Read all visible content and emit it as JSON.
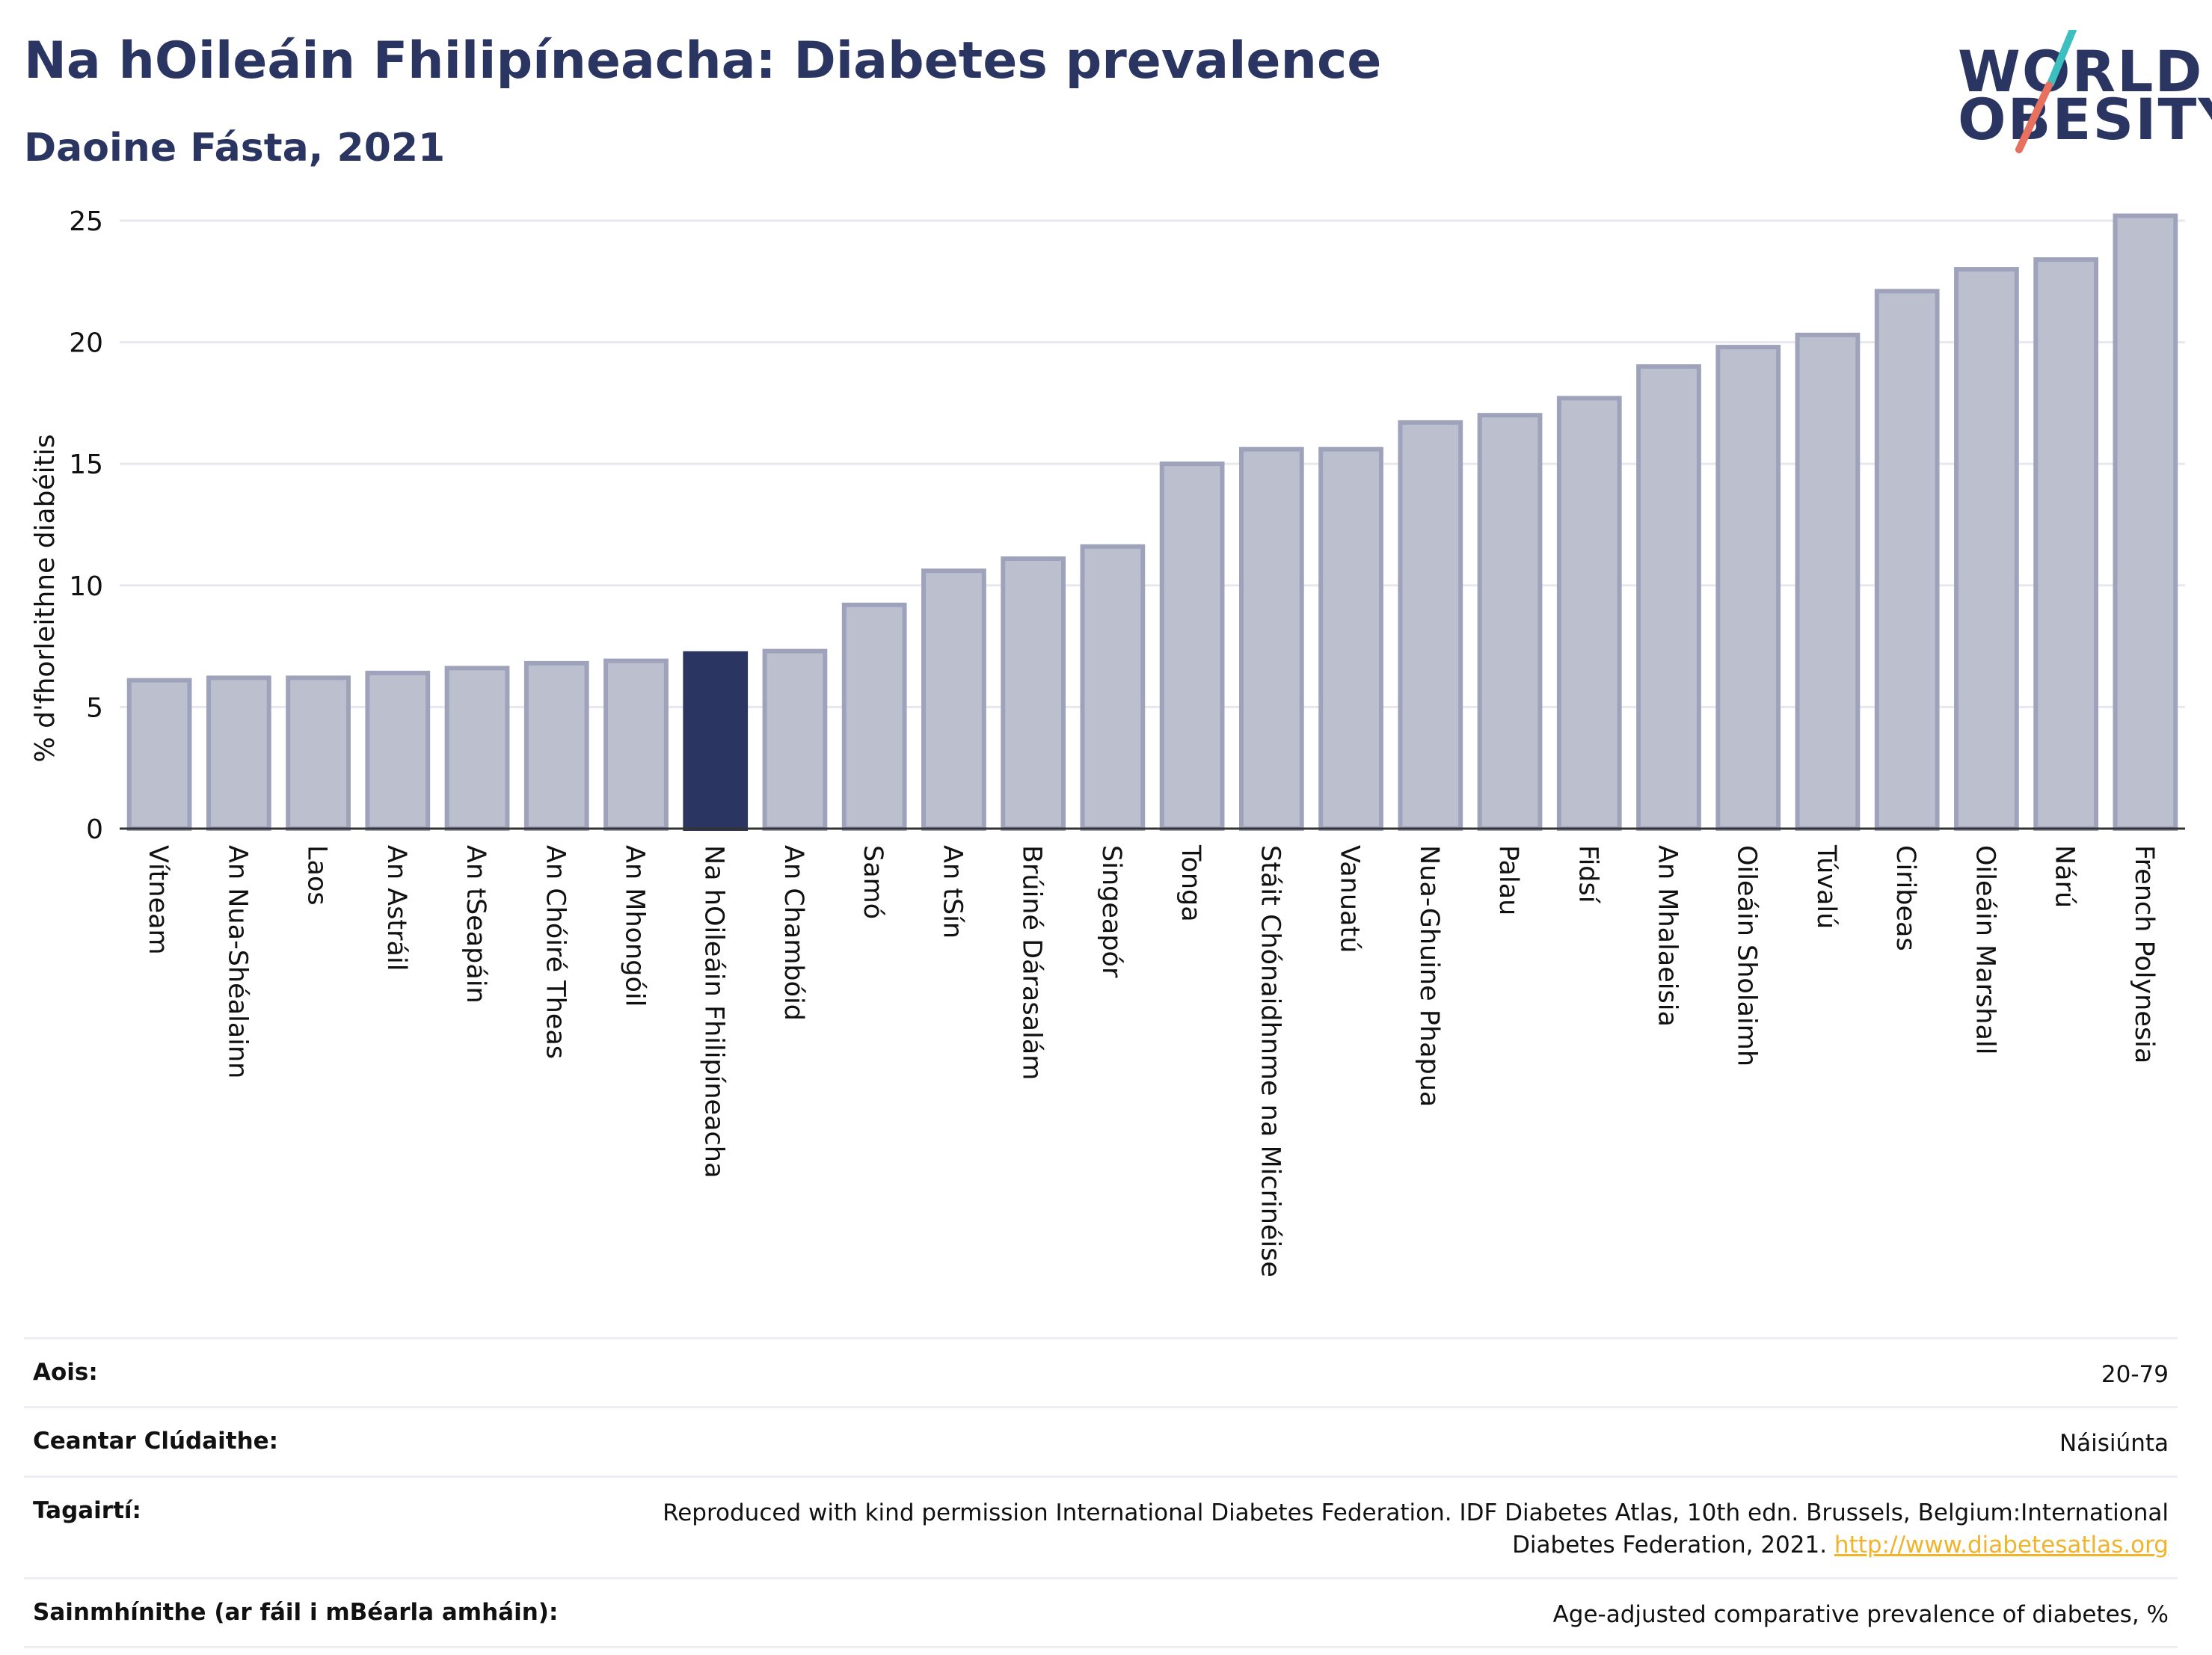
{
  "header": {
    "title": "Na hOileáin Fhilipíneacha: Diabetes prevalence",
    "subtitle": "Daoine Fásta, 2021"
  },
  "logo": {
    "line1": "WORLD",
    "line2": "OBESITY",
    "slash_colors": [
      "#3bbfbf",
      "#e8705f"
    ]
  },
  "colors": {
    "bar": "#bcc0ce",
    "bar_border": "#9ea3bb",
    "highlight": "#2a3561",
    "axis": "#333333",
    "grid": "#e6e8ee"
  },
  "chart_data": {
    "type": "bar",
    "title": "Na hOileáin Fhilipíneacha: Diabetes prevalence",
    "subtitle": "Daoine Fásta, 2021",
    "xlabel": "",
    "ylabel": "% d'fhorleithne diabéitis",
    "ylim": [
      0,
      26
    ],
    "yticks": [
      0,
      5,
      10,
      15,
      20,
      25
    ],
    "grid": true,
    "highlight": "Na hOileáin Fhilipíneacha",
    "categories": [
      "Vítneam",
      "An Nua-Shéalainn",
      "Laos",
      "An Astráil",
      "An tSeapáin",
      "An Chóiré Theas",
      "An Mhongóil",
      "Na hOileáin Fhilipíneacha",
      "An Chambóid",
      "Samó",
      "An tSín",
      "Brúiné Dárasalám",
      "Singeapór",
      "Tonga",
      "Stáit Chónaidhnme na Micrinéise",
      "Vanuatú",
      "Nua-Ghuine Phapua",
      "Palau",
      "Fidsí",
      "An Mhalaeisia",
      "Oileáin Sholaimh",
      "Túvalú",
      "Ciribeas",
      "Oileáin Marshall",
      "Nárú",
      "French Polynesia"
    ],
    "values": [
      6.1,
      6.2,
      6.2,
      6.4,
      6.6,
      6.8,
      6.9,
      7.2,
      7.3,
      9.2,
      10.6,
      11.1,
      11.6,
      15.0,
      15.6,
      15.6,
      16.7,
      17.0,
      17.7,
      19.0,
      19.8,
      20.3,
      22.1,
      23.0,
      23.4,
      25.2
    ]
  },
  "info": {
    "rows": [
      {
        "label": "Aois:",
        "value": "20-79"
      },
      {
        "label": "Ceantar Clúdaithe:",
        "value": "Náisiúnta"
      },
      {
        "label": "Tagairtí:",
        "value": "Reproduced with kind permission International Diabetes Federation.  IDF Diabetes Atlas, 10th edn. Brussels, Belgium:International Diabetes Federation, 2021.",
        "link": "http://www.diabetesatlas.org"
      },
      {
        "label": "Sainmhínithe (ar fáil i mBéarla amháin):",
        "value": "Age-adjusted comparative prevalence of diabetes, %"
      }
    ]
  }
}
